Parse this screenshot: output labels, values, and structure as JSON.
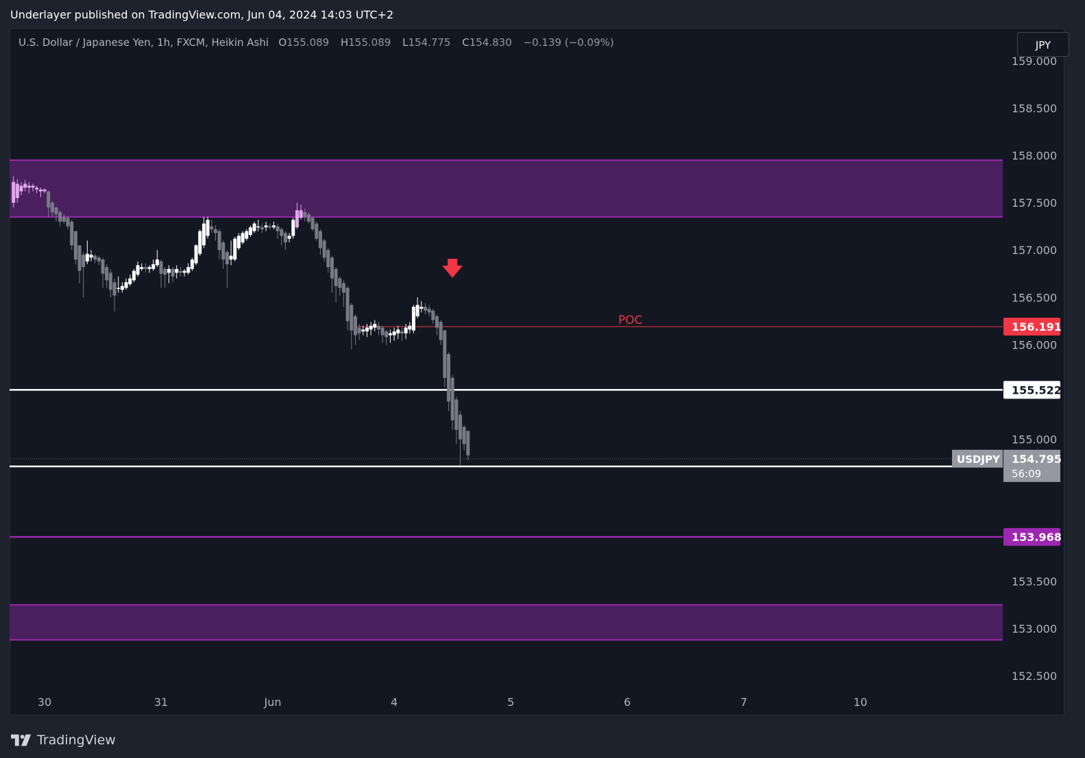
{
  "header": {
    "published_text": "Underlayer published on TradingView.com, Jun 04, 2024 14:03 UTC+2"
  },
  "legend": {
    "symbol_desc": "U.S. Dollar / Japanese Yen, 1h, FXCM, Heikin Ashi",
    "o_label": "O",
    "o_value": "155.089",
    "h_label": "H",
    "h_value": "155.089",
    "l_label": "L",
    "l_value": "154.775",
    "c_label": "C",
    "c_value": "154.830",
    "change": "−0.139 (−0.09%)"
  },
  "currency_button": "JPY",
  "footer": {
    "brand": "TradingView"
  },
  "colors": {
    "background": "#131722",
    "zone_fill": "#4a1f5e",
    "zone_border": "#9c27b0",
    "poc": "#f23645",
    "level_white": "#ffffff",
    "candle_bull": "#ffffff",
    "candle_bear": "#787b86",
    "candle_in_zone": "#e1a8ea",
    "price_tag": "#9598a1"
  },
  "chart_data": {
    "type": "candlestick",
    "title": "U.S. Dollar / Japanese Yen, 1h, FXCM, Heikin Ashi",
    "ylim": [
      152.25,
      159.05
    ],
    "y_ticks": [
      "159.000",
      "158.500",
      "158.000",
      "157.500",
      "157.000",
      "156.500",
      "156.000",
      "155.000",
      "153.500",
      "153.000",
      "152.500"
    ],
    "x_ticks": [
      {
        "label": "30",
        "x": 0.0
      },
      {
        "label": "31",
        "x": 24.0
      },
      {
        "label": "Jun",
        "x": 47.0
      },
      {
        "label": "4",
        "x": 72.0
      },
      {
        "label": "5",
        "x": 96.0
      },
      {
        "label": "6",
        "x": 120.0
      },
      {
        "label": "7",
        "x": 144.0
      },
      {
        "label": "10",
        "x": 168.0
      }
    ],
    "zones": [
      {
        "name": "upper-supply-zone",
        "from": 157.35,
        "to": 157.95
      },
      {
        "name": "lower-demand-zone",
        "from": 152.88,
        "to": 153.25
      }
    ],
    "levels": [
      {
        "name": "poc-line",
        "value": 156.191,
        "label": "156.191",
        "color": "#f23645",
        "text": "POC"
      },
      {
        "name": "level-155522",
        "value": 155.522,
        "label": "155.522",
        "color": "#ffffff"
      },
      {
        "name": "level-154714",
        "value": 154.714,
        "label": "154.714",
        "color": "#ffffff"
      },
      {
        "name": "level-153968",
        "value": 153.968,
        "label": "153.968",
        "color": "#9c27b0"
      }
    ],
    "current": {
      "symbol": "USDJPY",
      "price": "154.795",
      "countdown": "56:09",
      "value": 154.795
    },
    "annotation": {
      "type": "down-arrow",
      "x": 84.0,
      "y": 156.8
    },
    "candles": [
      {
        "x": -6.4,
        "o": 157.5,
        "c": 157.72,
        "h": 157.78,
        "l": 157.45
      },
      {
        "x": -5.6,
        "o": 157.55,
        "c": 157.7,
        "h": 157.75,
        "l": 157.5
      },
      {
        "x": -4.8,
        "o": 157.62,
        "c": 157.68,
        "h": 157.72,
        "l": 157.58
      },
      {
        "x": -4.0,
        "o": 157.66,
        "c": 157.7,
        "h": 157.74,
        "l": 157.62
      },
      {
        "x": -3.2,
        "o": 157.68,
        "c": 157.66,
        "h": 157.72,
        "l": 157.6
      },
      {
        "x": -2.4,
        "o": 157.66,
        "c": 157.68,
        "h": 157.7,
        "l": 157.62
      },
      {
        "x": -1.6,
        "o": 157.66,
        "c": 157.64,
        "h": 157.68,
        "l": 157.6
      },
      {
        "x": -0.8,
        "o": 157.64,
        "c": 157.62,
        "h": 157.66,
        "l": 157.56
      },
      {
        "x": 0.0,
        "o": 157.64,
        "c": 157.62,
        "h": 157.65,
        "l": 157.6
      },
      {
        "x": 0.8,
        "o": 157.62,
        "c": 157.45,
        "h": 157.63,
        "l": 157.35
      },
      {
        "x": 1.6,
        "o": 157.5,
        "c": 157.4,
        "h": 157.52,
        "l": 157.35
      },
      {
        "x": 2.4,
        "o": 157.45,
        "c": 157.38,
        "h": 157.46,
        "l": 157.3
      },
      {
        "x": 3.2,
        "o": 157.4,
        "c": 157.3,
        "h": 157.42,
        "l": 157.25
      },
      {
        "x": 4.0,
        "o": 157.35,
        "c": 157.3,
        "h": 157.38,
        "l": 157.28
      },
      {
        "x": 4.8,
        "o": 157.34,
        "c": 157.25,
        "h": 157.36,
        "l": 157.22
      },
      {
        "x": 5.6,
        "o": 157.3,
        "c": 157.05,
        "h": 157.32,
        "l": 157.0
      },
      {
        "x": 6.4,
        "o": 157.2,
        "c": 156.9,
        "h": 157.2,
        "l": 156.85
      },
      {
        "x": 7.2,
        "o": 157.05,
        "c": 156.78,
        "h": 157.05,
        "l": 156.65
      },
      {
        "x": 8.0,
        "o": 156.95,
        "c": 156.82,
        "h": 156.98,
        "l": 156.5
      },
      {
        "x": 8.8,
        "o": 156.88,
        "c": 156.96,
        "h": 157.1,
        "l": 156.85
      },
      {
        "x": 9.6,
        "o": 156.92,
        "c": 156.95,
        "h": 157.0,
        "l": 156.88
      },
      {
        "x": 10.4,
        "o": 156.94,
        "c": 156.9,
        "h": 156.96,
        "l": 156.86
      },
      {
        "x": 11.2,
        "o": 156.92,
        "c": 156.88,
        "h": 156.94,
        "l": 156.84
      },
      {
        "x": 12.0,
        "o": 156.9,
        "c": 156.75,
        "h": 156.92,
        "l": 156.6
      },
      {
        "x": 12.8,
        "o": 156.82,
        "c": 156.68,
        "h": 156.85,
        "l": 156.6
      },
      {
        "x": 13.6,
        "o": 156.76,
        "c": 156.58,
        "h": 156.8,
        "l": 156.5
      },
      {
        "x": 14.4,
        "o": 156.66,
        "c": 156.52,
        "h": 156.7,
        "l": 156.35
      },
      {
        "x": 15.2,
        "o": 156.6,
        "c": 156.6,
        "h": 156.72,
        "l": 156.55
      },
      {
        "x": 16.0,
        "o": 156.58,
        "c": 156.62,
        "h": 156.66,
        "l": 156.55
      },
      {
        "x": 16.8,
        "o": 156.6,
        "c": 156.66,
        "h": 156.7,
        "l": 156.58
      },
      {
        "x": 17.6,
        "o": 156.64,
        "c": 156.7,
        "h": 156.74,
        "l": 156.62
      },
      {
        "x": 18.4,
        "o": 156.68,
        "c": 156.78,
        "h": 156.8,
        "l": 156.66
      },
      {
        "x": 19.2,
        "o": 156.74,
        "c": 156.84,
        "h": 156.88,
        "l": 156.72
      },
      {
        "x": 20.0,
        "o": 156.8,
        "c": 156.82,
        "h": 156.86,
        "l": 156.78
      },
      {
        "x": 20.8,
        "o": 156.82,
        "c": 156.8,
        "h": 156.86,
        "l": 156.76
      },
      {
        "x": 21.6,
        "o": 156.8,
        "c": 156.82,
        "h": 156.84,
        "l": 156.76
      },
      {
        "x": 22.4,
        "o": 156.8,
        "c": 156.85,
        "h": 156.9,
        "l": 156.78
      },
      {
        "x": 23.2,
        "o": 156.84,
        "c": 156.9,
        "h": 157.0,
        "l": 156.82
      },
      {
        "x": 24.0,
        "o": 156.88,
        "c": 156.75,
        "h": 156.9,
        "l": 156.6
      },
      {
        "x": 24.8,
        "o": 156.8,
        "c": 156.74,
        "h": 156.82,
        "l": 156.6
      },
      {
        "x": 25.6,
        "o": 156.76,
        "c": 156.8,
        "h": 156.84,
        "l": 156.65
      },
      {
        "x": 26.4,
        "o": 156.8,
        "c": 156.72,
        "h": 156.82,
        "l": 156.66
      },
      {
        "x": 27.2,
        "o": 156.76,
        "c": 156.8,
        "h": 156.84,
        "l": 156.7
      },
      {
        "x": 28.0,
        "o": 156.78,
        "c": 156.76,
        "h": 156.82,
        "l": 156.72
      },
      {
        "x": 28.8,
        "o": 156.76,
        "c": 156.78,
        "h": 156.8,
        "l": 156.72
      },
      {
        "x": 29.6,
        "o": 156.76,
        "c": 156.82,
        "h": 156.86,
        "l": 156.74
      },
      {
        "x": 30.4,
        "o": 156.8,
        "c": 156.9,
        "h": 156.92,
        "l": 156.78
      },
      {
        "x": 31.2,
        "o": 156.86,
        "c": 157.05,
        "h": 157.06,
        "l": 156.84
      },
      {
        "x": 32.0,
        "o": 156.96,
        "c": 157.2,
        "h": 157.22,
        "l": 156.94
      },
      {
        "x": 32.8,
        "o": 157.05,
        "c": 157.28,
        "h": 157.35,
        "l": 157.02
      },
      {
        "x": 33.6,
        "o": 157.15,
        "c": 157.32,
        "h": 157.35,
        "l": 157.12
      },
      {
        "x": 34.4,
        "o": 157.25,
        "c": 157.22,
        "h": 157.32,
        "l": 157.18
      },
      {
        "x": 35.2,
        "o": 157.22,
        "c": 157.18,
        "h": 157.26,
        "l": 157.1
      },
      {
        "x": 36.0,
        "o": 157.2,
        "c": 157.0,
        "h": 157.22,
        "l": 156.9
      },
      {
        "x": 36.8,
        "o": 157.08,
        "c": 156.9,
        "h": 157.1,
        "l": 156.8
      },
      {
        "x": 37.6,
        "o": 156.98,
        "c": 156.85,
        "h": 157.0,
        "l": 156.6
      },
      {
        "x": 38.4,
        "o": 156.9,
        "c": 156.94,
        "h": 157.1,
        "l": 156.84
      },
      {
        "x": 39.2,
        "o": 156.9,
        "c": 157.12,
        "h": 157.14,
        "l": 156.88
      },
      {
        "x": 40.0,
        "o": 157.02,
        "c": 157.15,
        "h": 157.18,
        "l": 157.0
      },
      {
        "x": 40.8,
        "o": 157.08,
        "c": 157.18,
        "h": 157.2,
        "l": 157.06
      },
      {
        "x": 41.6,
        "o": 157.12,
        "c": 157.2,
        "h": 157.22,
        "l": 157.1
      },
      {
        "x": 42.4,
        "o": 157.16,
        "c": 157.24,
        "h": 157.26,
        "l": 157.14
      },
      {
        "x": 43.2,
        "o": 157.2,
        "c": 157.28,
        "h": 157.3,
        "l": 157.18
      },
      {
        "x": 44.0,
        "o": 157.24,
        "c": 157.25,
        "h": 157.32,
        "l": 157.2
      },
      {
        "x": 44.8,
        "o": 157.24,
        "c": 157.22,
        "h": 157.28,
        "l": 157.18
      },
      {
        "x": 45.6,
        "o": 157.24,
        "c": 157.26,
        "h": 157.3,
        "l": 157.2
      },
      {
        "x": 46.4,
        "o": 157.25,
        "c": 157.24,
        "h": 157.28,
        "l": 157.22
      },
      {
        "x": 47.2,
        "o": 157.24,
        "c": 157.26,
        "h": 157.3,
        "l": 157.22
      },
      {
        "x": 48.0,
        "o": 157.25,
        "c": 157.2,
        "h": 157.28,
        "l": 157.12
      },
      {
        "x": 48.8,
        "o": 157.22,
        "c": 157.15,
        "h": 157.24,
        "l": 157.05
      },
      {
        "x": 49.6,
        "o": 157.18,
        "c": 157.08,
        "h": 157.2,
        "l": 157.0
      },
      {
        "x": 50.4,
        "o": 157.12,
        "c": 157.15,
        "h": 157.18,
        "l": 157.08
      },
      {
        "x": 51.2,
        "o": 157.15,
        "c": 157.32,
        "h": 157.34,
        "l": 157.12
      },
      {
        "x": 52.0,
        "o": 157.24,
        "c": 157.42,
        "h": 157.5,
        "l": 157.22
      },
      {
        "x": 52.8,
        "o": 157.34,
        "c": 157.42,
        "h": 157.48,
        "l": 157.32
      },
      {
        "x": 53.6,
        "o": 157.4,
        "c": 157.35,
        "h": 157.44,
        "l": 157.3
      },
      {
        "x": 54.4,
        "o": 157.38,
        "c": 157.3,
        "h": 157.4,
        "l": 157.28
      },
      {
        "x": 55.2,
        "o": 157.34,
        "c": 157.22,
        "h": 157.36,
        "l": 157.2
      },
      {
        "x": 56.0,
        "o": 157.28,
        "c": 157.12,
        "h": 157.3,
        "l": 157.1
      },
      {
        "x": 56.8,
        "o": 157.2,
        "c": 157.02,
        "h": 157.22,
        "l": 156.95
      },
      {
        "x": 57.6,
        "o": 157.1,
        "c": 156.92,
        "h": 157.12,
        "l": 156.88
      },
      {
        "x": 58.4,
        "o": 157.0,
        "c": 156.82,
        "h": 157.02,
        "l": 156.76
      },
      {
        "x": 59.2,
        "o": 156.92,
        "c": 156.7,
        "h": 156.94,
        "l": 156.55
      },
      {
        "x": 60.0,
        "o": 156.8,
        "c": 156.62,
        "h": 156.82,
        "l": 156.45
      },
      {
        "x": 60.8,
        "o": 156.7,
        "c": 156.6,
        "h": 156.72,
        "l": 156.52
      },
      {
        "x": 61.6,
        "o": 156.65,
        "c": 156.55,
        "h": 156.68,
        "l": 156.4
      },
      {
        "x": 62.4,
        "o": 156.6,
        "c": 156.25,
        "h": 156.62,
        "l": 156.15
      },
      {
        "x": 63.2,
        "o": 156.42,
        "c": 156.15,
        "h": 156.44,
        "l": 155.95
      },
      {
        "x": 64.0,
        "o": 156.3,
        "c": 156.1,
        "h": 156.32,
        "l": 156.0
      },
      {
        "x": 64.8,
        "o": 156.18,
        "c": 156.12,
        "h": 156.22,
        "l": 156.05
      },
      {
        "x": 65.6,
        "o": 156.14,
        "c": 156.16,
        "h": 156.2,
        "l": 156.1
      },
      {
        "x": 66.4,
        "o": 156.14,
        "c": 156.18,
        "h": 156.22,
        "l": 156.08
      },
      {
        "x": 67.2,
        "o": 156.16,
        "c": 156.2,
        "h": 156.24,
        "l": 156.1
      },
      {
        "x": 68.0,
        "o": 156.18,
        "c": 156.22,
        "h": 156.26,
        "l": 156.14
      },
      {
        "x": 68.8,
        "o": 156.2,
        "c": 156.16,
        "h": 156.24,
        "l": 156.1
      },
      {
        "x": 69.6,
        "o": 156.18,
        "c": 156.1,
        "h": 156.2,
        "l": 156.02
      },
      {
        "x": 70.4,
        "o": 156.14,
        "c": 156.08,
        "h": 156.16,
        "l": 156.0
      },
      {
        "x": 71.2,
        "o": 156.1,
        "c": 156.12,
        "h": 156.16,
        "l": 156.02
      },
      {
        "x": 72.0,
        "o": 156.1,
        "c": 156.14,
        "h": 156.18,
        "l": 156.04
      },
      {
        "x": 72.8,
        "o": 156.12,
        "c": 156.16,
        "h": 156.2,
        "l": 156.06
      },
      {
        "x": 73.6,
        "o": 156.14,
        "c": 156.12,
        "h": 156.18,
        "l": 156.04
      },
      {
        "x": 74.4,
        "o": 156.12,
        "c": 156.18,
        "h": 156.22,
        "l": 156.06
      },
      {
        "x": 75.2,
        "o": 156.16,
        "c": 156.2,
        "h": 156.24,
        "l": 156.12
      },
      {
        "x": 76.0,
        "o": 156.15,
        "c": 156.4,
        "h": 156.42,
        "l": 156.12
      },
      {
        "x": 76.8,
        "o": 156.3,
        "c": 156.42,
        "h": 156.5,
        "l": 156.28
      },
      {
        "x": 77.6,
        "o": 156.38,
        "c": 156.4,
        "h": 156.46,
        "l": 156.34
      },
      {
        "x": 78.4,
        "o": 156.4,
        "c": 156.36,
        "h": 156.44,
        "l": 156.32
      },
      {
        "x": 79.2,
        "o": 156.38,
        "c": 156.34,
        "h": 156.42,
        "l": 156.3
      },
      {
        "x": 80.0,
        "o": 156.36,
        "c": 156.26,
        "h": 156.38,
        "l": 156.22
      },
      {
        "x": 80.8,
        "o": 156.3,
        "c": 156.18,
        "h": 156.32,
        "l": 156.1
      },
      {
        "x": 81.6,
        "o": 156.24,
        "c": 156.05,
        "h": 156.26,
        "l": 156.0
      },
      {
        "x": 82.4,
        "o": 156.15,
        "c": 155.65,
        "h": 156.16,
        "l": 155.55
      },
      {
        "x": 83.2,
        "o": 155.9,
        "c": 155.4,
        "h": 155.92,
        "l": 155.3
      },
      {
        "x": 84.0,
        "o": 155.65,
        "c": 155.2,
        "h": 155.68,
        "l": 155.1
      },
      {
        "x": 84.8,
        "o": 155.42,
        "c": 155.1,
        "h": 155.45,
        "l": 154.95
      },
      {
        "x": 85.6,
        "o": 155.26,
        "c": 155.0,
        "h": 155.3,
        "l": 154.72
      },
      {
        "x": 86.4,
        "o": 155.13,
        "c": 154.95,
        "h": 155.15,
        "l": 154.88
      },
      {
        "x": 87.2,
        "o": 155.089,
        "c": 154.83,
        "h": 155.089,
        "l": 154.775
      }
    ]
  }
}
